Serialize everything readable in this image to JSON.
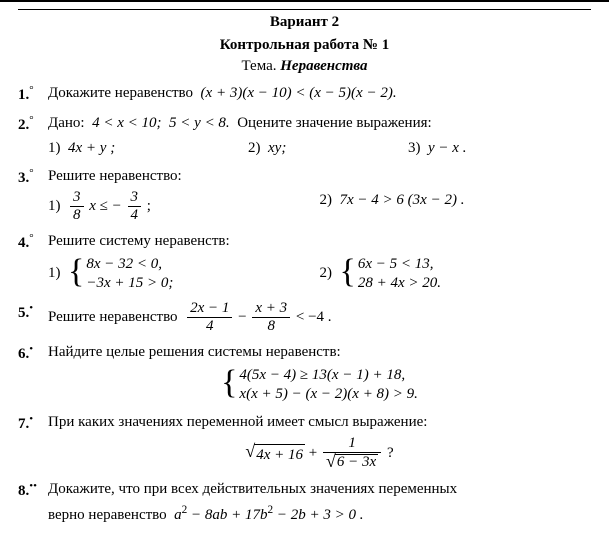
{
  "header": {
    "variant": "Вариант 2",
    "title": "Контрольная работа № 1",
    "theme_label": "Тема.",
    "theme_value": "Неравенства"
  },
  "tasks": {
    "t1": {
      "num": "1.",
      "mark": "°",
      "text": "Докажите неравенство",
      "expr": "(x + 3)(x − 10) < (x − 5)(x − 2)."
    },
    "t2": {
      "num": "2.",
      "mark": "°",
      "text_a": "Дано:",
      "given": "4 < x < 10;  5 < y < 8.",
      "text_b": "Оцените значение выражения:",
      "opts": {
        "a": "1)  4x + y ;",
        "b": "2)  xy;",
        "c": "3)  y − x ."
      }
    },
    "t3": {
      "num": "3.",
      "mark": "°",
      "text": "Решите неравенство:",
      "a_lbl": "1)",
      "a_num": "3",
      "a_den": "8",
      "a_mid": "x ≤ −",
      "a_num2": "3",
      "a_den2": "4",
      "a_end": ";",
      "b": "2)  7x − 4 > 6 (3x − 2) ."
    },
    "t4": {
      "num": "4.",
      "mark": "°",
      "text": "Решите систему неравенств:",
      "a_lbl": "1)",
      "a_line1": "8x − 32 < 0,",
      "a_line2": "−3x + 15 > 0;",
      "b_lbl": "2)",
      "b_line1": "6x − 5 < 13,",
      "b_line2": "28 + 4x > 20."
    },
    "t5": {
      "num": "5.",
      "mark": "•",
      "text": "Решите неравенство",
      "f1n": "2x − 1",
      "f1d": "4",
      "mid": " − ",
      "f2n": "x + 3",
      "f2d": "8",
      "tail": " < −4 ."
    },
    "t6": {
      "num": "6.",
      "mark": "•",
      "text": "Найдите целые решения системы неравенств:",
      "line1": "4(5x − 4) ≥ 13(x − 1) + 18,",
      "line2": "x(x + 5) − (x − 2)(x + 8) > 9."
    },
    "t7": {
      "num": "7.",
      "mark": "•",
      "text": "При каких значениях переменной имеет смысл выражение:",
      "rad1": "4x + 16",
      "plus": " + ",
      "f_num": "1",
      "rad2": "6 − 3x",
      "q": " ?"
    },
    "t8": {
      "num": "8.",
      "mark": "••",
      "text": "Докажите, что при всех действительных значениях переменных",
      "text2": "верно неравенство",
      "expr": "a² − 8ab + 17b² − 2b + 3 > 0 ."
    }
  }
}
